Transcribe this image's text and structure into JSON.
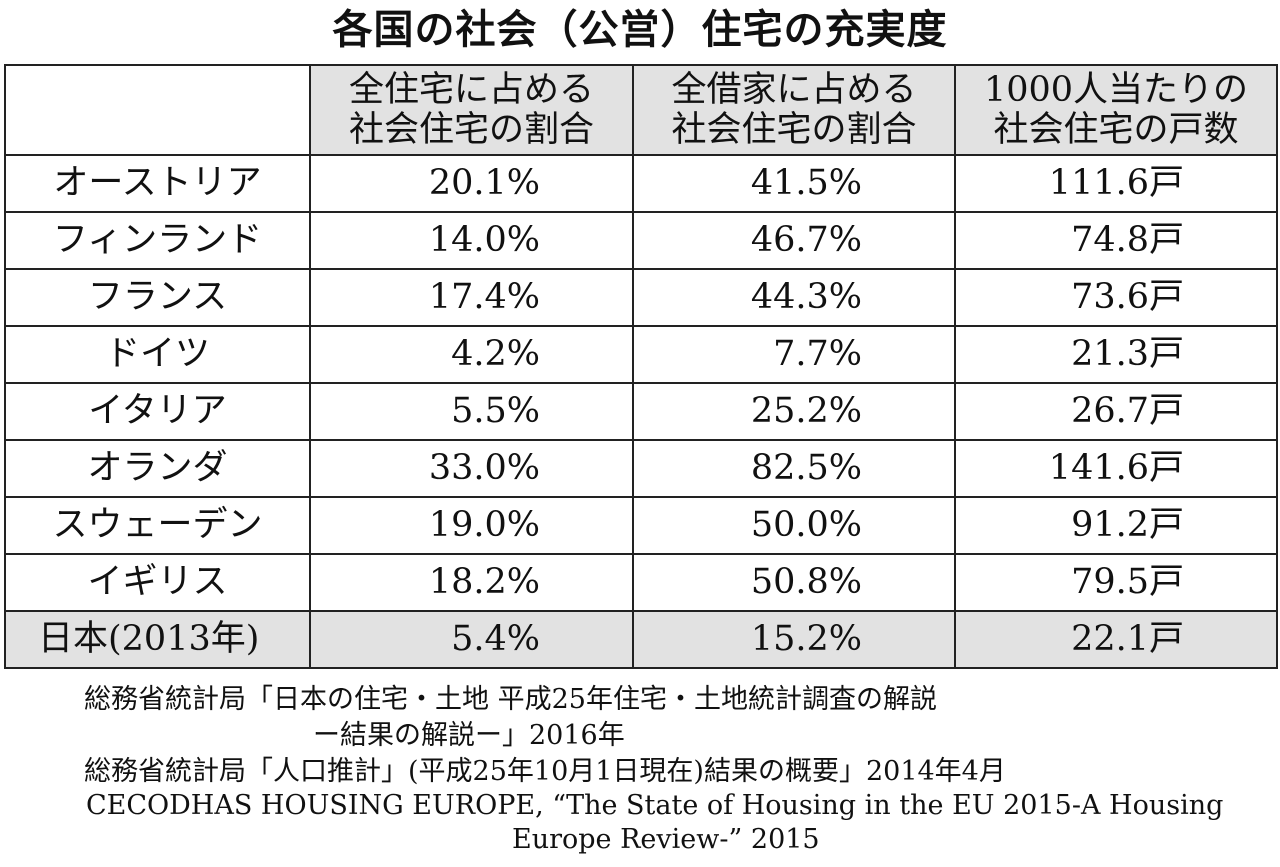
{
  "title": "各国の社会（公営）住宅の充実度",
  "table": {
    "headers": [
      "",
      [
        "全住宅に占める",
        "社会住宅の割合"
      ],
      [
        "全借家に占める",
        "社会住宅の割合"
      ],
      [
        "1000人当たりの",
        "社会住宅の戸数"
      ]
    ],
    "rows": [
      {
        "country": "オーストリア",
        "share_all": "20.1%",
        "share_rental": "41.5%",
        "per_1000": "111.6戸"
      },
      {
        "country": "フィンランド",
        "share_all": "14.0%",
        "share_rental": "46.7%",
        "per_1000": "74.8戸"
      },
      {
        "country": "フランス",
        "share_all": "17.4%",
        "share_rental": "44.3%",
        "per_1000": "73.6戸"
      },
      {
        "country": "ドイツ",
        "share_all": "4.2%",
        "share_rental": "7.7%",
        "per_1000": "21.3戸"
      },
      {
        "country": "イタリア",
        "share_all": "5.5%",
        "share_rental": "25.2%",
        "per_1000": "26.7戸"
      },
      {
        "country": "オランダ",
        "share_all": "33.0%",
        "share_rental": "82.5%",
        "per_1000": "141.6戸"
      },
      {
        "country": "スウェーデン",
        "share_all": "19.0%",
        "share_rental": "50.0%",
        "per_1000": "91.2戸"
      },
      {
        "country": "イギリス",
        "share_all": "18.2%",
        "share_rental": "50.8%",
        "per_1000": "79.5戸"
      },
      {
        "country": "日本(2013年)",
        "share_all": "5.4%",
        "share_rental": "15.2%",
        "per_1000": "22.1戸"
      }
    ]
  },
  "sources": [
    "総務省統計局「日本の住宅・土地 平成25年住宅・土地統計調査の解説",
    "ー結果の解説ー」2016年",
    "総務省統計局「人口推計」(平成25年10月1日現在)結果の概要」2014年4月",
    "CECODHAS HOUSING EUROPE, “The State of Housing in the EU 2015-A Housing",
    "Europe Review-” 2015"
  ]
}
